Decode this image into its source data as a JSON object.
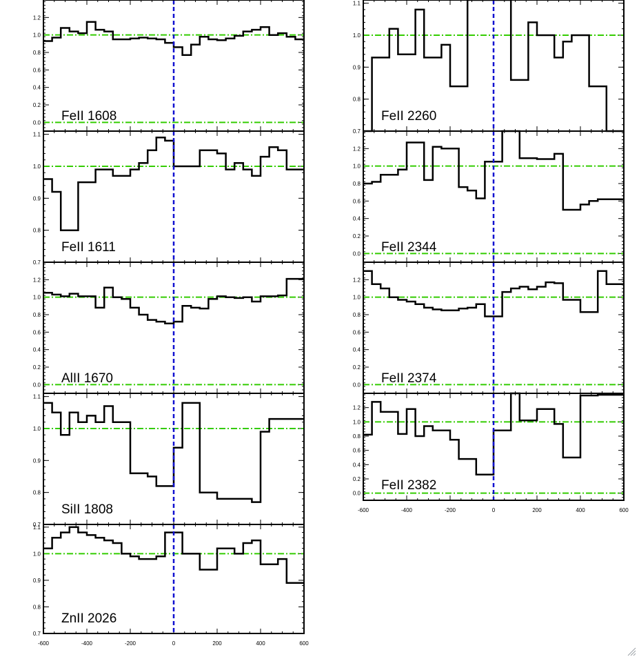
{
  "colors": {
    "frame": "#000000",
    "spectrum": "#000000",
    "continuum": "#33cc00",
    "zero_velocity": "#1010d0",
    "grip": "#9aa0a6"
  },
  "icons": {
    "grip": "resize-grip-icon"
  },
  "chart_data": [
    {
      "type": "line",
      "style": "step",
      "label": "FeII 1608",
      "x": [
        -600,
        -560,
        -520,
        -480,
        -440,
        -400,
        -360,
        -320,
        -280,
        -240,
        -200,
        -160,
        -120,
        -80,
        -40,
        0,
        40,
        80,
        120,
        160,
        200,
        240,
        280,
        320,
        360,
        400,
        440,
        480,
        520,
        560
      ],
      "values": [
        0.93,
        0.97,
        1.08,
        1.04,
        1.02,
        1.15,
        1.06,
        1.04,
        0.95,
        0.95,
        0.96,
        0.97,
        0.96,
        0.95,
        0.91,
        0.86,
        0.77,
        0.89,
        0.98,
        0.95,
        0.94,
        0.96,
        0.99,
        1.04,
        1.06,
        1.09,
        1.0,
        1.02,
        0.98,
        0.95
      ],
      "ylim": [
        -0.1,
        1.4
      ],
      "yticks": [
        0.0,
        0.2,
        0.4,
        0.6,
        0.8,
        1.0,
        1.2
      ],
      "ytick_labels": [
        "0.0",
        "0.2",
        "0.4",
        "0.6",
        "0.8",
        "1.0",
        "1.2"
      ],
      "xlim": [
        -600,
        600
      ],
      "grid": false
    },
    {
      "type": "line",
      "style": "step",
      "label": "FeII 1611",
      "x": [
        -600,
        -560,
        -520,
        -480,
        -440,
        -400,
        -360,
        -320,
        -280,
        -240,
        -200,
        -160,
        -120,
        -80,
        -40,
        0,
        40,
        80,
        120,
        160,
        200,
        240,
        280,
        320,
        360,
        400,
        440,
        480,
        520,
        560
      ],
      "values": [
        0.96,
        0.92,
        0.8,
        0.8,
        0.95,
        0.95,
        0.99,
        0.99,
        0.97,
        0.97,
        0.99,
        1.01,
        1.05,
        1.09,
        1.08,
        1.0,
        1.0,
        1.0,
        1.05,
        1.05,
        1.04,
        0.99,
        1.01,
        0.99,
        0.97,
        1.03,
        1.06,
        1.05,
        0.99,
        0.99
      ],
      "ylim": [
        0.7,
        1.11
      ],
      "yticks": [
        0.7,
        0.8,
        0.9,
        1.0,
        1.1
      ],
      "ytick_labels": [
        "0.7",
        "0.8",
        "0.9",
        "1.0",
        "1.1"
      ],
      "xlim": [
        -600,
        600
      ],
      "grid": false
    },
    {
      "type": "line",
      "style": "step",
      "label": "AlII 1670",
      "x": [
        -600,
        -560,
        -520,
        -480,
        -440,
        -400,
        -360,
        -320,
        -280,
        -240,
        -200,
        -160,
        -120,
        -80,
        -40,
        0,
        40,
        80,
        120,
        160,
        200,
        240,
        280,
        320,
        360,
        400,
        440,
        480,
        520,
        560
      ],
      "values": [
        1.05,
        1.03,
        1.01,
        1.04,
        1.01,
        1.01,
        0.88,
        1.11,
        1.0,
        0.98,
        0.88,
        0.8,
        0.74,
        0.72,
        0.7,
        0.72,
        0.9,
        0.88,
        0.87,
        0.98,
        1.01,
        1.0,
        0.99,
        1.0,
        0.95,
        1.01,
        1.01,
        1.02,
        1.21,
        1.21
      ],
      "ylim": [
        -0.1,
        1.4
      ],
      "yticks": [
        0.0,
        0.2,
        0.4,
        0.6,
        0.8,
        1.0,
        1.2
      ],
      "ytick_labels": [
        "0.0",
        "0.2",
        "0.4",
        "0.6",
        "0.8",
        "1.0",
        "1.2"
      ],
      "xlim": [
        -600,
        600
      ],
      "grid": false
    },
    {
      "type": "line",
      "style": "step",
      "label": "SiII 1808",
      "x": [
        -600,
        -560,
        -520,
        -480,
        -440,
        -400,
        -360,
        -320,
        -280,
        -240,
        -200,
        -160,
        -120,
        -80,
        -40,
        0,
        40,
        80,
        120,
        160,
        200,
        240,
        280,
        320,
        360,
        400,
        440,
        480,
        520,
        560
      ],
      "values": [
        1.08,
        1.05,
        0.98,
        1.05,
        1.02,
        1.04,
        1.02,
        1.07,
        1.02,
        1.02,
        0.86,
        0.86,
        0.85,
        0.82,
        0.82,
        0.94,
        1.08,
        1.08,
        0.8,
        0.8,
        0.78,
        0.78,
        0.78,
        0.78,
        0.77,
        0.99,
        1.03,
        1.03,
        1.03,
        1.03
      ],
      "ylim": [
        0.7,
        1.11
      ],
      "yticks": [
        0.7,
        0.8,
        0.9,
        1.0,
        1.1
      ],
      "ytick_labels": [
        "0.7",
        "0.8",
        "0.9",
        "1.0",
        "1.1"
      ],
      "xlim": [
        -600,
        600
      ],
      "grid": false
    },
    {
      "type": "line",
      "style": "step",
      "label": "ZnII 2026",
      "x": [
        -600,
        -560,
        -520,
        -480,
        -440,
        -400,
        -360,
        -320,
        -280,
        -240,
        -200,
        -160,
        -120,
        -80,
        -40,
        0,
        40,
        80,
        120,
        160,
        200,
        240,
        280,
        320,
        360,
        400,
        440,
        480,
        520,
        560
      ],
      "values": [
        1.02,
        1.06,
        1.08,
        1.1,
        1.08,
        1.07,
        1.06,
        1.05,
        1.04,
        1.0,
        0.99,
        0.98,
        0.98,
        0.99,
        1.08,
        1.08,
        1.0,
        1.0,
        0.94,
        0.94,
        1.02,
        1.02,
        1.0,
        1.04,
        1.05,
        0.96,
        0.96,
        0.98,
        0.89,
        0.89
      ],
      "ylim": [
        0.7,
        1.11
      ],
      "yticks": [
        0.7,
        0.8,
        0.9,
        1.0,
        1.1
      ],
      "ytick_labels": [
        "0.7",
        "0.8",
        "0.9",
        "1.0",
        "1.1"
      ],
      "xlim": [
        -600,
        600
      ],
      "xticks": [
        -600,
        -400,
        -200,
        0,
        200,
        400,
        600
      ],
      "xtick_labels": [
        "-600",
        "-400",
        "-200",
        "0",
        "200",
        "400",
        "600"
      ],
      "grid": false
    },
    {
      "type": "line",
      "style": "step",
      "label": "FeII 2260",
      "x": [
        -600,
        -560,
        -520,
        -480,
        -440,
        -400,
        -360,
        -320,
        -280,
        -240,
        -200,
        -160,
        -120,
        -80,
        -40,
        0,
        40,
        80,
        120,
        160,
        200,
        240,
        280,
        320,
        360,
        400,
        440,
        480,
        520,
        560
      ],
      "values": [
        0.7,
        0.93,
        0.93,
        1.02,
        0.94,
        0.94,
        1.08,
        0.93,
        0.93,
        0.97,
        0.84,
        0.84,
        1.12,
        1.12,
        1.12,
        1.12,
        1.12,
        0.86,
        0.86,
        1.04,
        1.0,
        1.0,
        0.93,
        0.98,
        1.0,
        1.0,
        0.84,
        0.84,
        0.7,
        0.7
      ],
      "ylim": [
        0.7,
        1.11
      ],
      "yticks": [
        0.7,
        0.8,
        0.9,
        1.0,
        1.1
      ],
      "ytick_labels": [
        "0.7",
        "0.8",
        "0.9",
        "1.0",
        "1.1"
      ],
      "xlim": [
        -600,
        600
      ],
      "grid": false
    },
    {
      "type": "line",
      "style": "step",
      "label": "FeII 2344",
      "x": [
        -600,
        -560,
        -520,
        -480,
        -440,
        -400,
        -360,
        -320,
        -280,
        -240,
        -200,
        -160,
        -120,
        -80,
        -40,
        0,
        40,
        80,
        120,
        160,
        200,
        240,
        280,
        320,
        360,
        400,
        440,
        480,
        520,
        560
      ],
      "values": [
        0.8,
        0.82,
        0.9,
        0.9,
        0.96,
        1.27,
        1.27,
        0.84,
        1.22,
        1.2,
        1.2,
        0.76,
        0.72,
        0.63,
        1.05,
        1.05,
        1.4,
        1.4,
        1.09,
        1.09,
        1.08,
        1.08,
        1.14,
        0.5,
        0.5,
        0.56,
        0.6,
        0.62,
        0.62,
        0.62
      ],
      "ylim": [
        -0.1,
        1.4
      ],
      "yticks": [
        0.0,
        0.2,
        0.4,
        0.6,
        0.8,
        1.0,
        1.2
      ],
      "ytick_labels": [
        "0.0",
        "0.2",
        "0.4",
        "0.6",
        "0.8",
        "1.0",
        "1.2"
      ],
      "xlim": [
        -600,
        600
      ],
      "grid": false
    },
    {
      "type": "line",
      "style": "step",
      "label": "FeII 2374",
      "x": [
        -600,
        -560,
        -520,
        -480,
        -440,
        -400,
        -360,
        -320,
        -280,
        -240,
        -200,
        -160,
        -120,
        -80,
        -40,
        0,
        40,
        80,
        120,
        160,
        200,
        240,
        280,
        320,
        360,
        400,
        440,
        480,
        520,
        560
      ],
      "values": [
        1.3,
        1.15,
        1.1,
        1.0,
        0.97,
        0.95,
        0.92,
        0.88,
        0.86,
        0.85,
        0.85,
        0.87,
        0.88,
        0.92,
        0.78,
        0.78,
        1.06,
        1.1,
        1.12,
        1.09,
        1.12,
        1.17,
        1.16,
        0.97,
        0.97,
        0.83,
        0.83,
        1.3,
        1.15,
        1.15
      ],
      "ylim": [
        -0.1,
        1.4
      ],
      "yticks": [
        0.0,
        0.2,
        0.4,
        0.6,
        0.8,
        1.0,
        1.2
      ],
      "ytick_labels": [
        "0.0",
        "0.2",
        "0.4",
        "0.6",
        "0.8",
        "1.0",
        "1.2"
      ],
      "xlim": [
        -600,
        600
      ],
      "grid": false
    },
    {
      "type": "line",
      "style": "step",
      "label": "FeII 2382",
      "x": [
        -600,
        -560,
        -520,
        -480,
        -440,
        -400,
        -360,
        -320,
        -280,
        -240,
        -200,
        -160,
        -120,
        -80,
        -40,
        0,
        40,
        80,
        120,
        160,
        200,
        240,
        280,
        320,
        360,
        400,
        440,
        480,
        520,
        560
      ],
      "values": [
        0.82,
        1.28,
        1.14,
        1.14,
        0.83,
        1.18,
        0.8,
        0.94,
        0.88,
        0.88,
        0.75,
        0.48,
        0.48,
        0.26,
        0.26,
        0.88,
        0.88,
        1.4,
        1.02,
        1.02,
        1.18,
        1.18,
        0.97,
        0.5,
        0.5,
        1.37,
        1.37,
        1.38,
        1.38,
        1.38
      ],
      "ylim": [
        -0.1,
        1.4
      ],
      "yticks": [
        0.0,
        0.2,
        0.4,
        0.6,
        0.8,
        1.0,
        1.2
      ],
      "ytick_labels": [
        "0.0",
        "0.2",
        "0.4",
        "0.6",
        "0.8",
        "1.0",
        "1.2"
      ],
      "xlim": [
        -600,
        600
      ],
      "xticks": [
        -600,
        -400,
        -200,
        0,
        200,
        400,
        600
      ],
      "xtick_labels": [
        "-600",
        "-400",
        "-200",
        "0",
        "200",
        "400",
        "600"
      ],
      "grid": false
    }
  ]
}
